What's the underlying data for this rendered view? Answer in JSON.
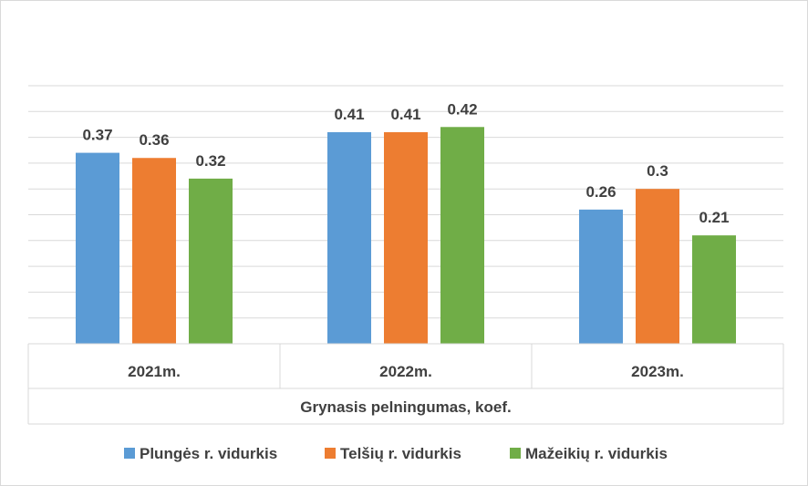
{
  "chart_data": {
    "type": "bar",
    "title": "",
    "xlabel": "Grynasis pelningumas, koef.",
    "ylabel": "",
    "categories": [
      "2021m.",
      "2022m.",
      "2023m."
    ],
    "series": [
      {
        "name": "Plungės r. vidurkis",
        "color": "#5b9bd5",
        "values": [
          0.37,
          0.41,
          0.26
        ]
      },
      {
        "name": "Telšių r. vidurkis",
        "color": "#ed7d31",
        "values": [
          0.36,
          0.41,
          0.3
        ]
      },
      {
        "name": "Mažeikių r. vidurkis",
        "color": "#70ad47",
        "values": [
          0.32,
          0.42,
          0.21
        ]
      }
    ],
    "ylim": [
      0,
      0.5
    ],
    "y_gridline_step": 0.05,
    "grid": true,
    "legend_position": "bottom",
    "data_labels": true
  }
}
